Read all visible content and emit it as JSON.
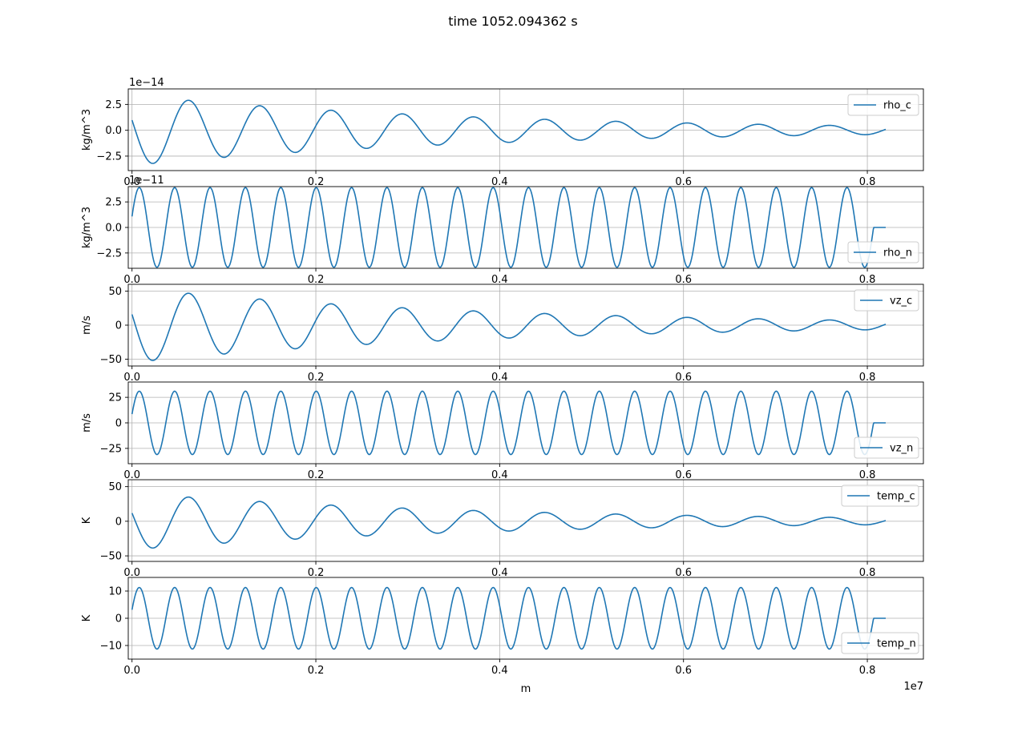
{
  "figure": {
    "title": "time 1052.094362 s"
  },
  "chart_data": [
    {
      "type": "line",
      "series": [
        {
          "name": "rho_c",
          "wave": "damped",
          "period": 0.0775,
          "amp0": 3.4,
          "decay": 2.6,
          "color": "#1f77b4"
        }
      ],
      "ylabel": "kg/m^3",
      "y_offset_label": "1e−14",
      "x_offset_label": "",
      "xlabel": "",
      "xlim": [
        -0.041,
        8.61
      ],
      "ylim": [
        -3.9,
        4.0
      ],
      "x_ticks": [
        0.0,
        2.0,
        4.0,
        6.0,
        8.0
      ],
      "x_tick_labels": [
        "0.0",
        "0.2",
        "0.4",
        "0.6",
        "0.8"
      ],
      "y_ticks": [
        -2.5,
        0.0,
        2.5
      ],
      "y_tick_labels": [
        "−2.5",
        "0.0",
        "2.5"
      ],
      "legend_position": "upper right",
      "grid": true
    },
    {
      "type": "line",
      "series": [
        {
          "name": "rho_n",
          "wave": "steady",
          "period": 0.385,
          "amp": 3.9,
          "color": "#1f77b4"
        }
      ],
      "ylabel": "kg/m^3",
      "y_offset_label": "1e−11",
      "x_offset_label": "",
      "xlabel": "",
      "xlim": [
        -0.041,
        8.61
      ],
      "ylim": [
        -4.0,
        4.0
      ],
      "x_ticks": [
        0.0,
        2.0,
        4.0,
        6.0,
        8.0
      ],
      "x_tick_labels": [
        "0.0",
        "0.2",
        "0.4",
        "0.6",
        "0.8"
      ],
      "y_ticks": [
        -2.5,
        0.0,
        2.5
      ],
      "y_tick_labels": [
        "−2.5",
        "0.0",
        "2.5"
      ],
      "legend_position": "lower right",
      "grid": true
    },
    {
      "type": "line",
      "series": [
        {
          "name": "vz_c",
          "wave": "damped",
          "period": 0.0775,
          "amp0": 55,
          "decay": 2.6,
          "color": "#1f77b4"
        }
      ],
      "ylabel": "m/s",
      "y_offset_label": "",
      "x_offset_label": "",
      "xlabel": "",
      "xlim": [
        -0.041,
        8.61
      ],
      "ylim": [
        -60,
        60
      ],
      "x_ticks": [
        0.0,
        2.0,
        4.0,
        6.0,
        8.0
      ],
      "x_tick_labels": [
        "0.0",
        "0.2",
        "0.4",
        "0.6",
        "0.8"
      ],
      "y_ticks": [
        -50,
        0,
        50
      ],
      "y_tick_labels": [
        "−50",
        "0",
        "50"
      ],
      "legend_position": "upper right",
      "grid": true
    },
    {
      "type": "line",
      "series": [
        {
          "name": "vz_n",
          "wave": "steady",
          "period": 0.385,
          "amp": 31,
          "color": "#1f77b4"
        }
      ],
      "ylabel": "m/s",
      "y_offset_label": "",
      "x_offset_label": "",
      "xlabel": "",
      "xlim": [
        -0.041,
        8.61
      ],
      "ylim": [
        -40,
        40
      ],
      "x_ticks": [
        0.0,
        2.0,
        4.0,
        6.0,
        8.0
      ],
      "x_tick_labels": [
        "0.0",
        "0.2",
        "0.4",
        "0.6",
        "0.8"
      ],
      "y_ticks": [
        -25,
        0,
        25
      ],
      "y_tick_labels": [
        "−25",
        "0",
        "25"
      ],
      "legend_position": "lower right",
      "grid": true
    },
    {
      "type": "line",
      "series": [
        {
          "name": "temp_c",
          "wave": "damped",
          "period": 0.0775,
          "amp0": 41,
          "decay": 2.6,
          "color": "#1f77b4"
        }
      ],
      "ylabel": "K",
      "y_offset_label": "",
      "x_offset_label": "",
      "xlabel": "",
      "xlim": [
        -0.041,
        8.61
      ],
      "ylim": [
        -58,
        60
      ],
      "x_ticks": [
        0.0,
        2.0,
        4.0,
        6.0,
        8.0
      ],
      "x_tick_labels": [
        "0.0",
        "0.2",
        "0.4",
        "0.6",
        "0.8"
      ],
      "y_ticks": [
        -50,
        0,
        50
      ],
      "y_tick_labels": [
        "−50",
        "0",
        "50"
      ],
      "legend_position": "upper right",
      "grid": true
    },
    {
      "type": "line",
      "series": [
        {
          "name": "temp_n",
          "wave": "steady",
          "period": 0.385,
          "amp": 11.3,
          "color": "#1f77b4"
        }
      ],
      "ylabel": "K",
      "y_offset_label": "",
      "x_offset_label": "1e7",
      "xlabel": "m",
      "xlim": [
        -0.041,
        8.61
      ],
      "ylim": [
        -15,
        15
      ],
      "x_ticks": [
        0.0,
        2.0,
        4.0,
        6.0,
        8.0
      ],
      "x_tick_labels": [
        "0.0",
        "0.2",
        "0.4",
        "0.6",
        "0.8"
      ],
      "y_ticks": [
        -10,
        0,
        10
      ],
      "y_tick_labels": [
        "−10",
        "0",
        "10"
      ],
      "legend_position": "lower right",
      "grid": true
    }
  ]
}
